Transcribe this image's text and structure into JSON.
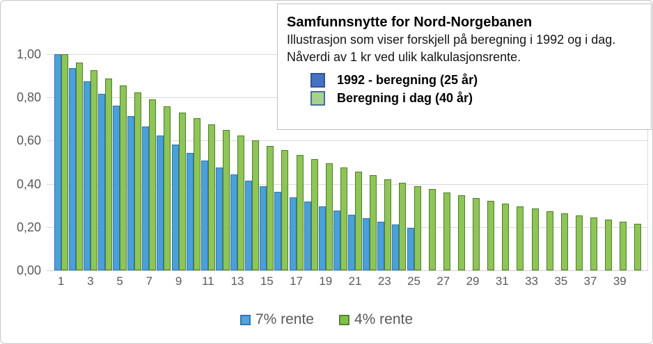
{
  "annotation_box": {
    "title": "Samfunnsnytte for Nord-Norgebanen",
    "subtitle_line1": "Illustrasjon som viser forskjell på beregning i 1992 og i dag.",
    "subtitle_line2": "Nåverdi av 1 kr ved ulik kalkulasjonsrente.",
    "legend": [
      {
        "label": "1992 - beregning (25 år)",
        "fill": "#4472c4",
        "border": "#2f5597"
      },
      {
        "label": "Beregning i dag (40 år)",
        "fill": "#a9d18e",
        "border": "#41719c"
      }
    ]
  },
  "bottom_legend": [
    {
      "label": "7% rente",
      "fill": "#55a3d9",
      "border": "#2e75b6"
    },
    {
      "label": "4% rente",
      "fill": "#7fc241",
      "border": "#538135"
    }
  ],
  "chart_data": {
    "type": "bar",
    "title": "Samfunnsnytte for Nord-Norgebanen",
    "xlabel": "",
    "ylabel": "Nåverdi av 1 kr",
    "ylim": [
      0,
      1.0
    ],
    "grid": "horizontal",
    "categories": [
      1,
      2,
      3,
      4,
      5,
      6,
      7,
      8,
      9,
      10,
      11,
      12,
      13,
      14,
      15,
      16,
      17,
      18,
      19,
      20,
      21,
      22,
      23,
      24,
      25,
      26,
      27,
      28,
      29,
      30,
      31,
      32,
      33,
      34,
      35,
      36,
      37,
      38,
      39,
      40
    ],
    "x_tick_labels": [
      "1",
      "3",
      "5",
      "7",
      "9",
      "11",
      "13",
      "15",
      "17",
      "19",
      "21",
      "23",
      "25",
      "27",
      "29",
      "31",
      "33",
      "35",
      "37",
      "39"
    ],
    "y_ticks": [
      {
        "label": "0,00",
        "value": 0.0
      },
      {
        "label": "0,20",
        "value": 0.2
      },
      {
        "label": "0,40",
        "value": 0.4
      },
      {
        "label": "0,60",
        "value": 0.6
      },
      {
        "label": "0,80",
        "value": 0.8
      },
      {
        "label": "1,00",
        "value": 1.0
      }
    ],
    "series": [
      {
        "name": "7% rente",
        "description": "1992 - beregning (25 år)",
        "fill": "#4aa0d8",
        "border": "#2e75b6",
        "values": [
          1.0,
          0.935,
          0.873,
          0.816,
          0.763,
          0.713,
          0.666,
          0.623,
          0.582,
          0.544,
          0.508,
          0.475,
          0.444,
          0.415,
          0.388,
          0.362,
          0.339,
          0.317,
          0.296,
          0.277,
          0.258,
          0.242,
          0.226,
          0.211,
          0.197
        ]
      },
      {
        "name": "4% rente",
        "description": "Beregning i dag (40 år)",
        "fill": "#8dc557",
        "border": "#4f7b28",
        "values": [
          1.0,
          0.962,
          0.925,
          0.889,
          0.855,
          0.822,
          0.79,
          0.76,
          0.731,
          0.703,
          0.676,
          0.65,
          0.625,
          0.601,
          0.577,
          0.555,
          0.534,
          0.513,
          0.494,
          0.475,
          0.456,
          0.439,
          0.422,
          0.406,
          0.39,
          0.375,
          0.361,
          0.347,
          0.333,
          0.321,
          0.308,
          0.296,
          0.285,
          0.274,
          0.264,
          0.253,
          0.244,
          0.234,
          0.225,
          0.217
        ]
      }
    ]
  }
}
